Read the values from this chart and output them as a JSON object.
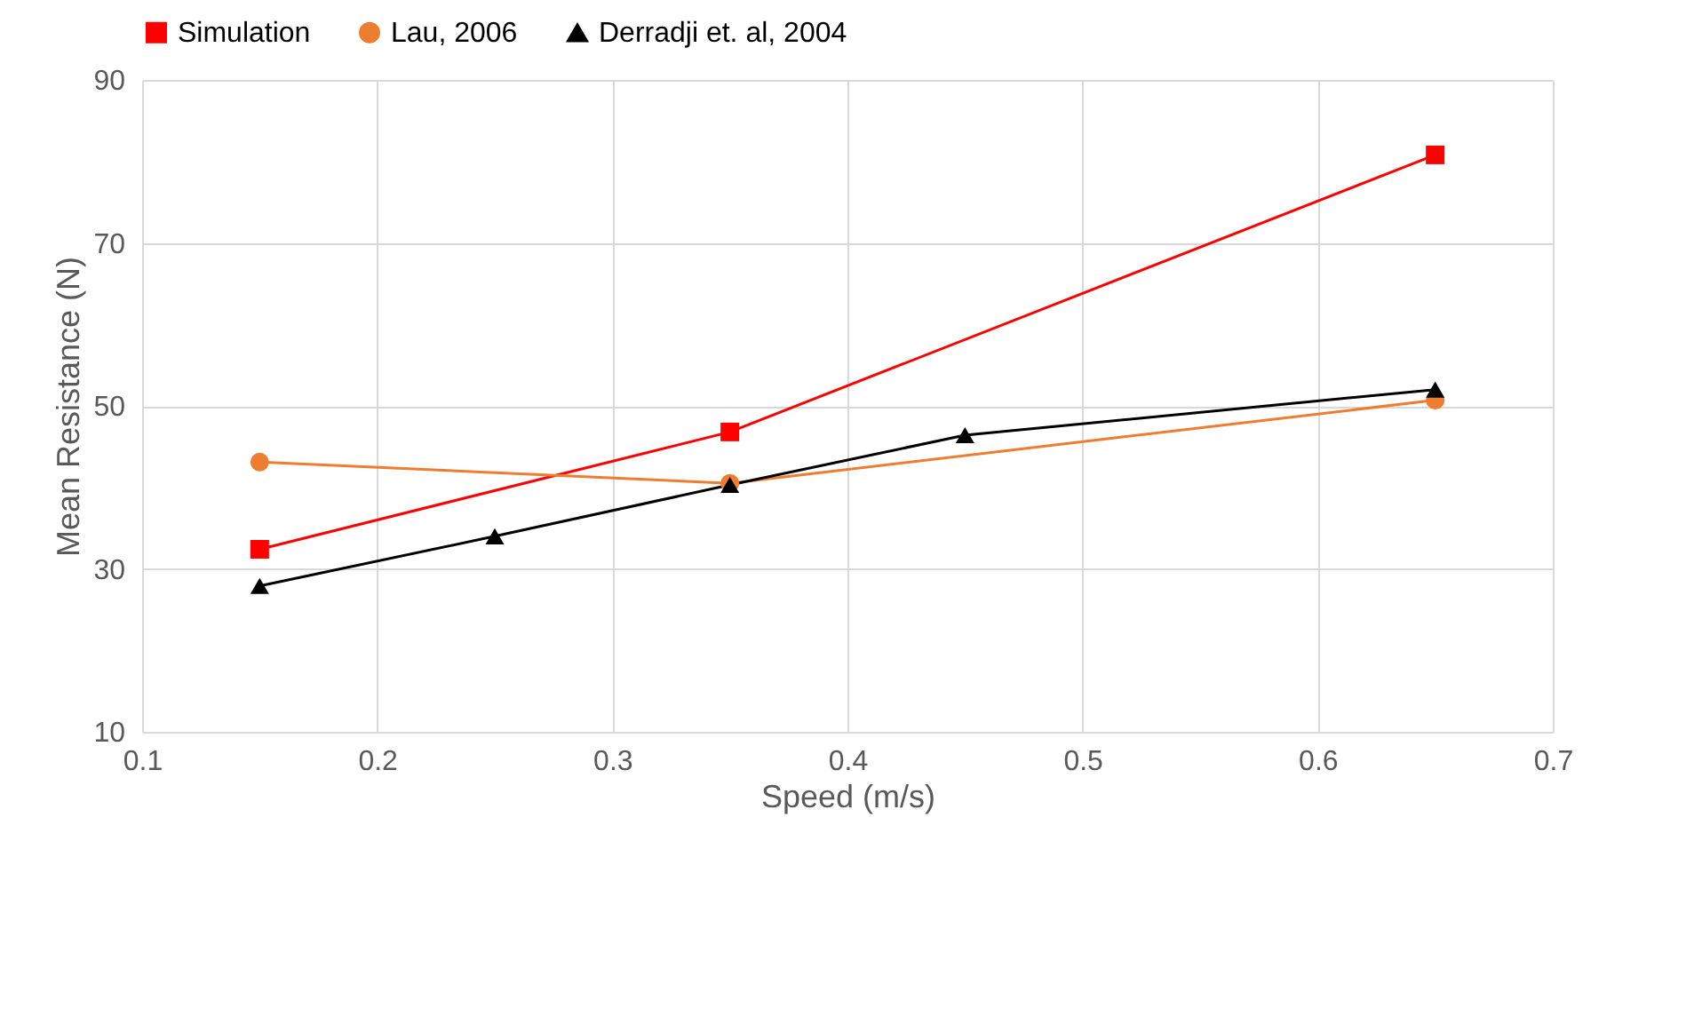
{
  "chart_data": {
    "type": "line",
    "xlabel": "Speed (m/s)",
    "ylabel": "Mean Resistance (N)",
    "xlim": [
      0.1,
      0.7
    ],
    "xticks": [
      0.1,
      0.2,
      0.3,
      0.4,
      0.5,
      0.6,
      0.7
    ],
    "ylim": [
      10,
      90
    ],
    "yticks": [
      10,
      30,
      50,
      70,
      90
    ],
    "grid": true,
    "legend": "top",
    "line_style": "solid",
    "series": [
      {
        "name": "Simulation",
        "color": "#ff0000",
        "marker": "square",
        "x": [
          0.15,
          0.35,
          0.65
        ],
        "values": [
          32.4,
          46.8,
          80.8
        ]
      },
      {
        "name": "Lau, 2006",
        "color": "#ed7d31",
        "marker": "circle",
        "x": [
          0.15,
          0.35,
          0.65
        ],
        "values": [
          43.1,
          40.5,
          50.7
        ]
      },
      {
        "name": "Derradji et. al, 2004",
        "color": "#000000",
        "marker": "triangle",
        "x": [
          0.15,
          0.25,
          0.35,
          0.45,
          0.65
        ],
        "values": [
          27.9,
          34.0,
          40.3,
          46.4,
          52.0
        ]
      }
    ]
  }
}
